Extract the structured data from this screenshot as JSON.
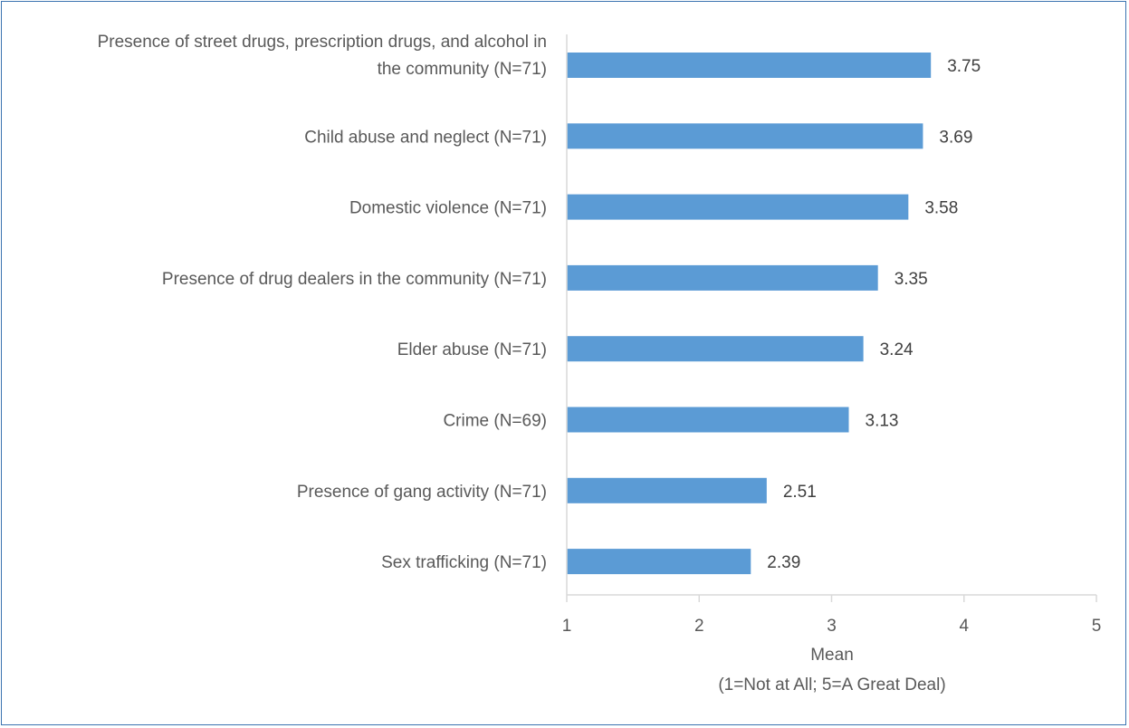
{
  "chart_data": {
    "type": "bar",
    "orientation": "horizontal",
    "categories": [
      "Presence of street drugs, prescription drugs, and alcohol in the community (N=71)",
      "Child abuse and neglect (N=71)",
      "Domestic violence (N=71)",
      "Presence of drug dealers in the community (N=71)",
      "Elder abuse (N=71)",
      "Crime (N=69)",
      "Presence of gang activity (N=71)",
      "Sex trafficking (N=71)"
    ],
    "category_lines": [
      [
        "Presence of street drugs, prescription drugs, and alcohol in",
        "the community (N=71)"
      ],
      [
        "Child abuse and neglect (N=71)"
      ],
      [
        "Domestic violence (N=71)"
      ],
      [
        "Presence of drug dealers in the community (N=71)"
      ],
      [
        "Elder abuse (N=71)"
      ],
      [
        "Crime (N=69)"
      ],
      [
        "Presence of gang activity (N=71)"
      ],
      [
        "Sex trafficking (N=71)"
      ]
    ],
    "values": [
      3.75,
      3.69,
      3.58,
      3.35,
      3.24,
      3.13,
      2.51,
      2.39
    ],
    "value_labels": [
      "3.75",
      "3.69",
      "3.58",
      "3.35",
      "3.24",
      "3.13",
      "2.51",
      "2.39"
    ],
    "xticks": [
      "1",
      "2",
      "3",
      "4",
      "5"
    ],
    "xlim": [
      1,
      5
    ],
    "xlabel": "Mean",
    "xlabel_sub": "(1=Not at All; 5=A Great Deal)",
    "bar_color": "#5b9bd5",
    "axis_color": "#d9d9d9",
    "border_color": "#3a73b0",
    "grid": false,
    "legend": "none"
  }
}
